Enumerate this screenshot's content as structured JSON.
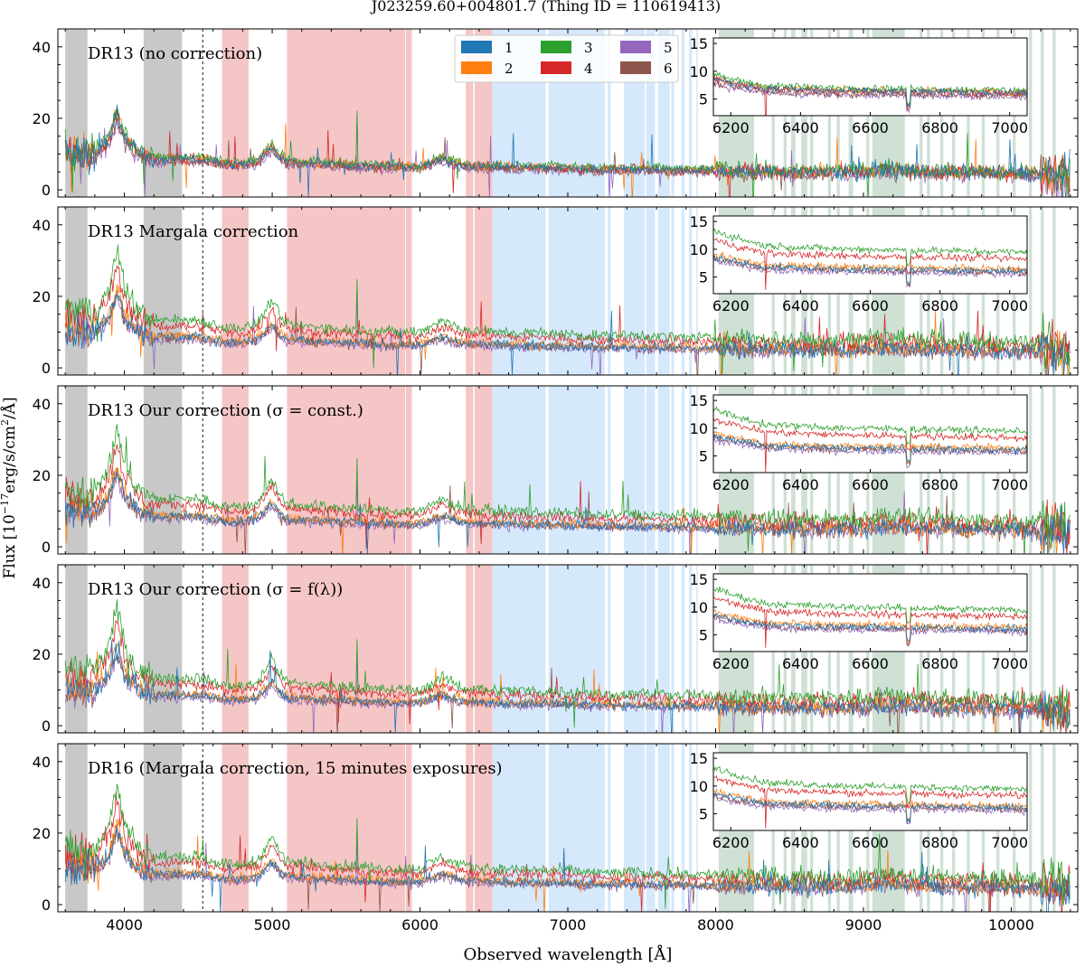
{
  "chart_data": {
    "type": "line",
    "title": "J023259.60+004801.7   (Thing ID = 110619413)",
    "xlabel": "Observed wavelength [Å]",
    "ylabel": "Flux [10^-17 erg/s/cm^2/Å]",
    "ylabel_parts": {
      "pre": "Flux [10",
      "exp1": "−17",
      "mid": "erg/s/cm",
      "exp2": "2",
      "post": "/Å]"
    },
    "xlim": [
      3550,
      10450
    ],
    "ylim": [
      -2,
      45
    ],
    "x_ticks": [
      4000,
      5000,
      6000,
      7000,
      8000,
      9000,
      10000
    ],
    "x_tick_labels": [
      "4000",
      "5000",
      "6000",
      "7000",
      "8000",
      "9000",
      "10000"
    ],
    "y_ticks": [
      0,
      20,
      40
    ],
    "y_tick_labels": [
      "0",
      "20",
      "40"
    ],
    "inset": {
      "xlim": [
        6150,
        7050
      ],
      "ylim": [
        2,
        16
      ],
      "x_ticks": [
        6200,
        6400,
        6600,
        6800,
        7000
      ],
      "x_tick_labels": [
        "6200",
        "6400",
        "6600",
        "6800",
        "7000"
      ],
      "y_ticks": [
        5,
        10,
        15
      ],
      "y_tick_labels": [
        "5",
        "10",
        "15"
      ]
    },
    "legend": {
      "placement": "top-center of first panel, 3 columns",
      "entries": [
        {
          "name": "1",
          "color": "#1f77b4"
        },
        {
          "name": "2",
          "color": "#ff7f0e"
        },
        {
          "name": "3",
          "color": "#2ca02c"
        },
        {
          "name": "4",
          "color": "#d62728"
        },
        {
          "name": "5",
          "color": "#9467bd"
        },
        {
          "name": "6",
          "color": "#8c564b"
        }
      ]
    },
    "dashed_line_x": 4530,
    "shaded_regions": [
      {
        "type": "gray",
        "color": "#c8c8c8",
        "ranges": [
          [
            3600,
            3750
          ],
          [
            4130,
            4390
          ]
        ]
      },
      {
        "type": "red",
        "color": "#f5c6c6",
        "ranges": [
          [
            4660,
            4840
          ],
          [
            5100,
            5900
          ],
          [
            5905,
            5945
          ],
          [
            6310,
            6360
          ],
          [
            6370,
            6490
          ]
        ]
      },
      {
        "type": "blue",
        "color": "#d6e8fb",
        "ranges": [
          [
            6490,
            6850
          ],
          [
            6870,
            7250
          ],
          [
            7270,
            7290
          ],
          [
            7380,
            7520
          ],
          [
            7530,
            7590
          ],
          [
            7610,
            7690
          ],
          [
            7700,
            7720
          ],
          [
            7770,
            7790
          ],
          [
            7820,
            7840
          ],
          [
            7870,
            7880
          ]
        ]
      },
      {
        "type": "green",
        "color": "#cfe0d5",
        "ranges": [
          [
            8020,
            8260
          ],
          [
            8380,
            8400
          ],
          [
            8460,
            8480
          ],
          [
            8510,
            8540
          ],
          [
            8580,
            8620
          ],
          [
            8640,
            8660
          ],
          [
            8760,
            8780
          ],
          [
            8820,
            8840
          ],
          [
            8900,
            8930
          ],
          [
            9020,
            9040
          ],
          [
            9060,
            9280
          ],
          [
            9380,
            9400
          ],
          [
            9430,
            9450
          ],
          [
            9520,
            9540
          ],
          [
            9600,
            9620
          ],
          [
            9700,
            9720
          ],
          [
            9800,
            9820
          ],
          [
            9900,
            9920
          ],
          [
            10010,
            10030
          ],
          [
            10120,
            10140
          ],
          [
            10200,
            10220
          ],
          [
            10280,
            10300
          ]
        ]
      }
    ],
    "series": [
      {
        "name": "1",
        "color": "#1f77b4"
      },
      {
        "name": "2",
        "color": "#ff7f0e"
      },
      {
        "name": "3",
        "color": "#2ca02c"
      },
      {
        "name": "4",
        "color": "#d62728"
      },
      {
        "name": "5",
        "color": "#9467bd"
      },
      {
        "name": "6",
        "color": "#8c564b"
      }
    ],
    "continuum_shape": {
      "x": [
        3600,
        3700,
        3800,
        3900,
        3950,
        4000,
        4100,
        4200,
        4300,
        4400,
        4500,
        4600,
        4700,
        4800,
        4900,
        4950,
        5000,
        5050,
        5100,
        5200,
        5400,
        5600,
        5800,
        6000,
        6100,
        6150,
        6200,
        6300,
        6500,
        7000,
        7200,
        7500,
        8000,
        8500,
        9000,
        9100,
        9500,
        10000,
        10300,
        10400
      ],
      "y": [
        15,
        14,
        14,
        20,
        30,
        20,
        14,
        12,
        12,
        12,
        12,
        11,
        10,
        10,
        11,
        14,
        17,
        13,
        11,
        10.5,
        10,
        9.5,
        9,
        9,
        11,
        12,
        11,
        9.5,
        9,
        8.5,
        8,
        8,
        7.5,
        7,
        7,
        8,
        7,
        6.5,
        6,
        5
      ]
    },
    "panels": [
      {
        "label": "DR13 (no correction)",
        "scales": [
          0.72,
          0.74,
          0.78,
          0.72,
          0.64,
          0.66
        ]
      },
      {
        "label": "DR13 Margala correction",
        "scales": [
          0.72,
          0.76,
          1.12,
          0.98,
          0.66,
          0.7
        ]
      },
      {
        "label": "DR13 Our correction (σ = const.)",
        "scales": [
          0.72,
          0.76,
          1.12,
          0.98,
          0.66,
          0.7
        ]
      },
      {
        "label": "DR13 Our correction (σ = f(λ))",
        "scales": [
          0.72,
          0.76,
          1.12,
          0.98,
          0.66,
          0.7
        ]
      },
      {
        "label": "DR16 (Margala correction, 15 minutes exposures)",
        "scales": [
          0.72,
          0.76,
          1.12,
          0.98,
          0.66,
          0.7
        ]
      }
    ]
  }
}
